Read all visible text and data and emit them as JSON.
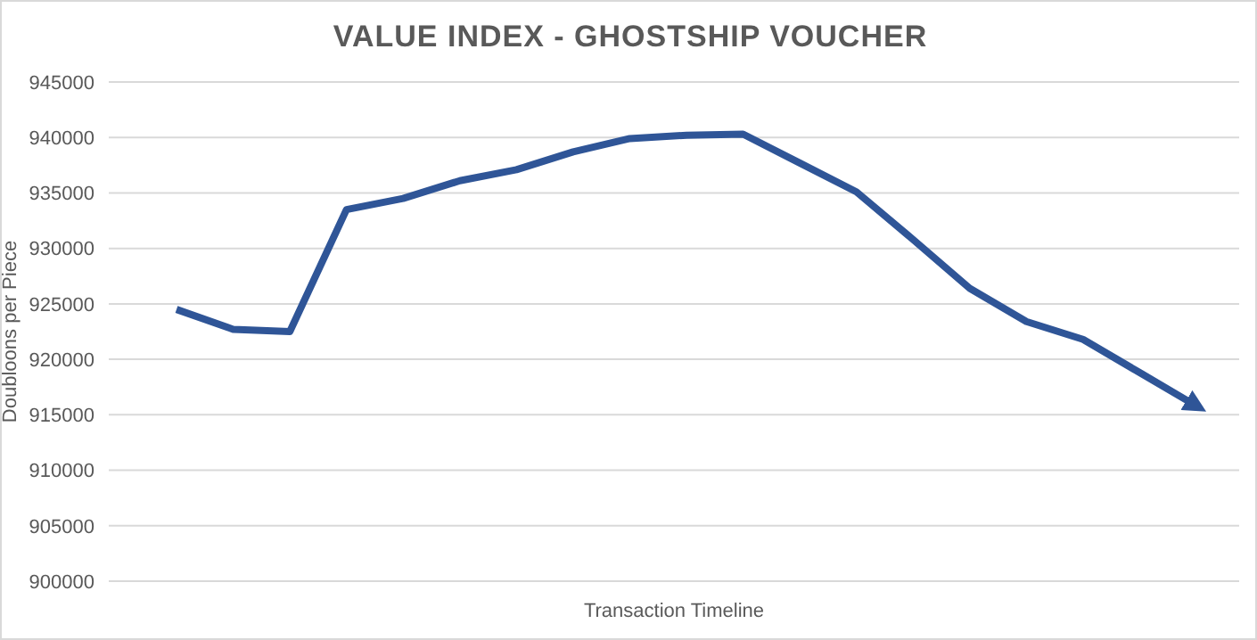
{
  "chart_data": {
    "type": "line",
    "title": "VALUE INDEX - GHOSTSHIP VOUCHER",
    "xlabel": "Transaction Timeline",
    "ylabel": "Doubloons per Piece",
    "categories": [
      null,
      null,
      null,
      null,
      null,
      null,
      null,
      null,
      null,
      null,
      null,
      null,
      null,
      null,
      null,
      null,
      null,
      null,
      null
    ],
    "series": [
      {
        "color": "#2f5597",
        "values": [
          924500,
          922700,
          922500,
          933500,
          934500,
          936100,
          937100,
          938700,
          939900,
          940200,
          940300,
          937700,
          935100,
          930800,
          926400,
          923400,
          921800,
          918800,
          915800
        ]
      }
    ],
    "ylim": [
      900000,
      945000
    ],
    "yticks": [
      900000,
      905000,
      910000,
      915000,
      920000,
      925000,
      930000,
      935000,
      940000,
      945000
    ],
    "grid": "y",
    "legend": false,
    "marker": "none",
    "line_style": "solid"
  }
}
